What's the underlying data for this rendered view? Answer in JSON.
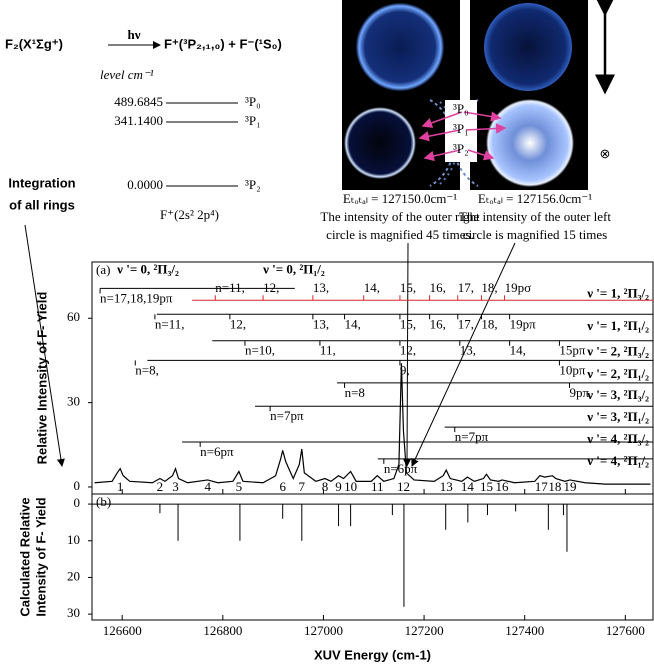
{
  "reaction": {
    "reactant": "F₂(X¹Σg⁺)",
    "photon": "hν",
    "products": "F⁺(³P₂,₁,₀) + F⁻(¹S₀)"
  },
  "level_header": "level cm⁻¹",
  "levels": [
    {
      "energy": "489.6845",
      "term": "³P₀"
    },
    {
      "energy": "341.1400",
      "term": "³P₁"
    },
    {
      "energy": "0.0000",
      "term": "³P₂"
    }
  ],
  "ion_config": "F⁺(2s² 2p⁴)",
  "integration_label": [
    "Integration",
    "of all rings"
  ],
  "images": {
    "states": [
      "³P₀",
      "³P₁",
      "³P₂"
    ],
    "captions": [
      {
        "energy": "Eₜₒₜₐₗ = 127150.0cm⁻¹",
        "note": [
          "The intensity of the outer right",
          "circle is magnified 45 times."
        ]
      },
      {
        "energy": "Eₜₒₜₐₗ = 127156.0cm⁻¹",
        "note": [
          "The intensity of the outer left",
          "circle is magnified 15 times"
        ]
      }
    ]
  },
  "chart_data": [
    {
      "type": "line",
      "panel_label": "(a)",
      "ylabel": "Relative Intensity of F- Yield",
      "xlim": [
        126540,
        127655
      ],
      "ylim": [
        -2.5,
        80
      ],
      "yticks": [
        0,
        30,
        60
      ],
      "xticks": [
        126600,
        126800,
        127000,
        127200,
        127400,
        127600
      ],
      "x": [
        126545,
        126580,
        126590,
        126596,
        126602,
        126615,
        126660,
        126675,
        126685,
        126700,
        126706,
        126712,
        126730,
        126770,
        126790,
        126820,
        126832,
        126840,
        126880,
        126905,
        126915,
        126919,
        126925,
        126940,
        126952,
        126957,
        126962,
        126985,
        127003,
        127015,
        127030,
        127040,
        127054,
        127065,
        127095,
        127107,
        127120,
        127140,
        127150,
        127155,
        127159,
        127165,
        127180,
        127220,
        127238,
        127244,
        127252,
        127275,
        127286,
        127300,
        127318,
        127324,
        127332,
        127348,
        127355,
        127380,
        127420,
        127430,
        127440,
        127455,
        127462,
        127480,
        127490,
        127520,
        127560,
        127650
      ],
      "series": [
        {
          "color": "#000000",
          "values": [
            1.5,
            2,
            5,
            6.5,
            4,
            2,
            1.5,
            3,
            2,
            4,
            6.5,
            3,
            1.5,
            2.5,
            1.5,
            2,
            5.5,
            2,
            1.5,
            4,
            10,
            13,
            9,
            3,
            8,
            13.5,
            5,
            2,
            3,
            2,
            4,
            3,
            5.5,
            2,
            2,
            4,
            2,
            3,
            8,
            44,
            20,
            5,
            2.5,
            2,
            4,
            6,
            3,
            2,
            3.5,
            2,
            3,
            4.5,
            2.5,
            2,
            2.5,
            1.5,
            2,
            4,
            3.5,
            4,
            3,
            2,
            2.5,
            1.5,
            1,
            1
          ]
        }
      ],
      "peaks": [
        126596,
        126675,
        126706,
        126770,
        126832,
        126919,
        126957,
        127003,
        127030,
        127054,
        127107,
        127159,
        127244,
        127286,
        127324,
        127355,
        127433,
        127460,
        127490
      ],
      "peak_labels": [
        "1",
        "2",
        "3",
        "4",
        "5",
        "6",
        "7",
        "8",
        "9",
        "10",
        "11",
        "12",
        "13",
        "14",
        "15",
        "16",
        "17",
        "18",
        "19"
      ],
      "top_labels": [
        "ν '= 0, ²Π₃/₂",
        "ν '= 0, ²Π₁/₂"
      ],
      "top_label_x": [
        126590,
        126880
      ],
      "top_label_y": 77,
      "right_labels": [
        "ν '= 1, ²Π₃/₂",
        "ν '= 1, ²Π₁/₂",
        "ν '= 2, ²Π₃/₂",
        "ν '= 2, ²Π₁/₂",
        "ν '= 3, ²Π₃/₂",
        "ν '= 3, ²Π₁/₂",
        "ν '= 4, ²Π₃/₂",
        "ν '= 4, ²Π₁/₂"
      ],
      "right_label_y": [
        68.5,
        56.8,
        47.9,
        39.8,
        32.3,
        24.5,
        16.7,
        8.9
      ],
      "rows": [
        {
          "y": 70.6,
          "x0": 126556,
          "x1": 126943,
          "side": "below",
          "n_labels": [
            "n=17,18,19pπ"
          ],
          "n_x": [
            126556
          ]
        },
        {
          "y": 66.4,
          "x0": 126739,
          "x1": 127656,
          "side": "above",
          "color": "#d62728",
          "n_labels": [
            "n=11,",
            "12,",
            "13,",
            "14,",
            "15,",
            "16,",
            "17,",
            "18,",
            "19pσ"
          ],
          "n_x": [
            126785,
            126880,
            126979,
            127080,
            127152,
            127211,
            127267,
            127314,
            127360
          ]
        },
        {
          "y": 61.4,
          "x0": 126669,
          "x1": 127656,
          "side": "below",
          "n_labels": [
            "n=11,",
            "12,",
            "13,",
            "14,",
            "15,",
            "16,",
            "17,",
            "18,",
            "19pπ"
          ],
          "n_x": [
            126665,
            126814,
            126979,
            127042,
            127152,
            127211,
            127267,
            127314,
            127370
          ]
        },
        {
          "y": 52,
          "x0": 126779,
          "x1": 127656,
          "side": "below",
          "n_labels": [
            "n=10,",
            "11,",
            "12,",
            "13,",
            "14,",
            "15pπ"
          ],
          "n_x": [
            126844,
            126993,
            127152,
            127271,
            127370,
            127469
          ]
        },
        {
          "y": 45,
          "x0": 126650,
          "x1": 127656,
          "side": "below",
          "n_labels": [
            "n=8,",
            "9,",
            "10pπ"
          ],
          "n_x": [
            126626,
            127152,
            127469
          ]
        },
        {
          "y": 37,
          "x0": 127027,
          "x1": 127656,
          "side": "below",
          "n_labels": [
            "n=8",
            "9pπ"
          ],
          "n_x": [
            127042,
            127489
          ]
        },
        {
          "y": 28.7,
          "x0": 126864,
          "x1": 127656,
          "side": "below",
          "n_labels": [
            "n=7pπ"
          ],
          "n_x": [
            126894
          ]
        },
        {
          "y": 21.3,
          "x0": 127241,
          "x1": 127656,
          "side": "below",
          "n_labels": [
            "n=7pπ"
          ],
          "n_x": [
            127261
          ]
        },
        {
          "y": 16,
          "x0": 126719,
          "x1": 127656,
          "side": "below",
          "n_labels": [
            "n=6pπ"
          ],
          "n_x": [
            126755
          ]
        },
        {
          "y": 10,
          "x0": 127108,
          "x1": 127656,
          "side": "below",
          "n_labels": [
            "n=6pπ"
          ],
          "n_x": [
            127120
          ]
        }
      ]
    },
    {
      "type": "stick",
      "panel_label": "(b)",
      "ylabel": [
        "Calculated Relative",
        "Intensity of F- Yield"
      ],
      "xlabel": "XUV Energy (cm-1)",
      "xlim": [
        126540,
        127655
      ],
      "ylim": [
        31.6,
        -2.75
      ],
      "yticks": [
        0,
        10,
        20,
        30
      ],
      "xticks": [
        126600,
        126800,
        127000,
        127200,
        127400,
        127600
      ],
      "x": [
        126675,
        126711,
        126834,
        126919,
        126957,
        127030,
        127054,
        127137,
        127160,
        127243,
        127287,
        127326,
        127382,
        127447,
        127477,
        127484
      ],
      "values": [
        2.5,
        10,
        10,
        4,
        10,
        6,
        6,
        3,
        28,
        7,
        5,
        3,
        2,
        7,
        3,
        13
      ],
      "color": "#000000"
    }
  ]
}
